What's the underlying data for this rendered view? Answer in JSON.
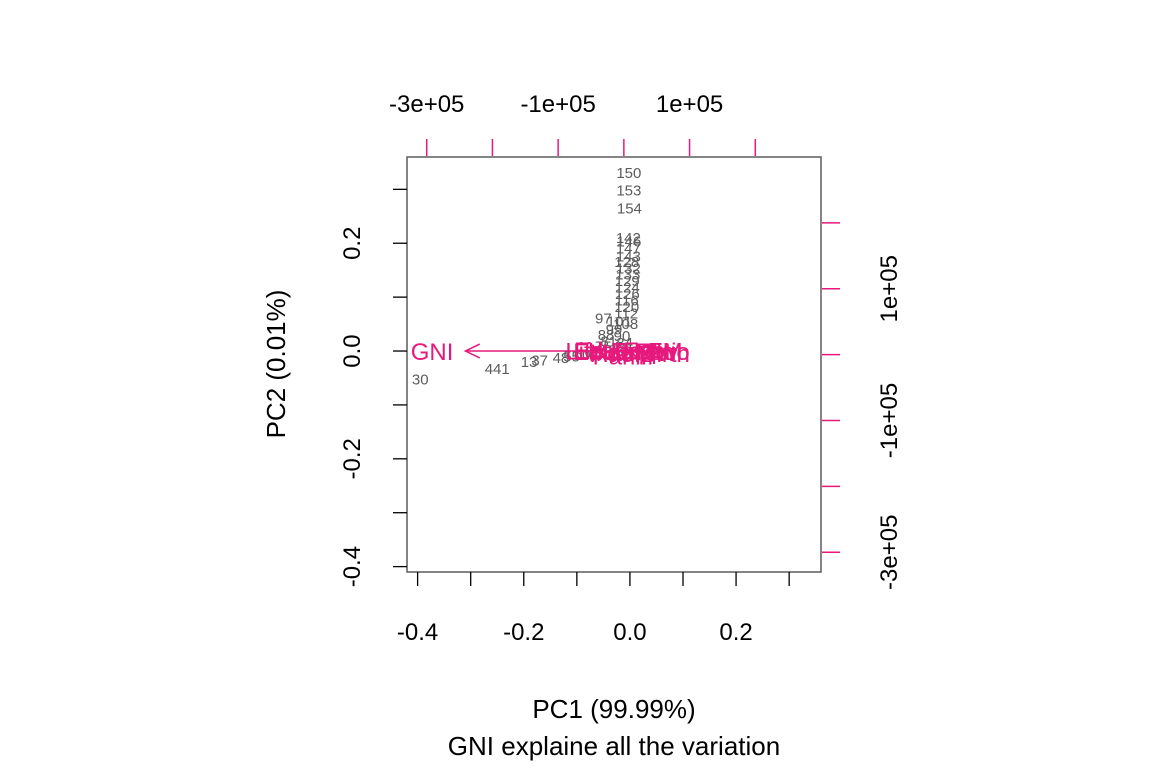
{
  "chart_data": {
    "type": "scatter",
    "subtype": "biplot",
    "xlabel": "PC1 (99.99%)",
    "ylabel": "PC2 (0.01%)",
    "subtitle": "GNI explaine all the variation",
    "xlim": [
      -0.42,
      0.36
    ],
    "ylim": [
      -0.41,
      0.36
    ],
    "x_ticks": [
      -0.4,
      -0.3,
      -0.2,
      -0.1,
      0.0,
      0.1,
      0.2,
      0.3
    ],
    "x_tick_labels": [
      {
        "value": -0.4,
        "label": "-0.4"
      },
      {
        "value": -0.2,
        "label": "-0.2"
      },
      {
        "value": 0.0,
        "label": "0.0"
      },
      {
        "value": 0.2,
        "label": "0.2"
      }
    ],
    "y_ticks": [
      -0.4,
      -0.3,
      -0.2,
      -0.1,
      0.0,
      0.1,
      0.2,
      0.3
    ],
    "y_tick_labels": [
      {
        "value": -0.4,
        "label": "-0.4"
      },
      {
        "value": -0.2,
        "label": "-0.2"
      },
      {
        "value": 0.0,
        "label": "0.0"
      },
      {
        "value": 0.2,
        "label": "0.2"
      }
    ],
    "top_axis": {
      "lim": [
        -330000,
        300000
      ],
      "ticks": [
        -300000,
        -200000,
        -100000,
        0,
        100000,
        200000
      ],
      "tick_labels": [
        {
          "value": -300000,
          "label": "-3e+05"
        },
        {
          "value": -100000,
          "label": "-1e+05"
        },
        {
          "value": 100000,
          "label": "1e+05"
        }
      ]
    },
    "right_axis": {
      "lim": [
        -330000,
        300000
      ],
      "ticks": [
        -300000,
        -200000,
        -100000,
        0,
        100000,
        200000
      ],
      "tick_labels": [
        {
          "value": -300000,
          "label": "-3e+05"
        },
        {
          "value": -100000,
          "label": "-1e+05"
        },
        {
          "value": 100000,
          "label": "1e+05"
        }
      ]
    },
    "observation_color": "#5c5c5c",
    "variable_color": "#e6197d",
    "axis_color": "#5c5c5c",
    "observations": [
      {
        "label": "150",
        "x": -0.002,
        "y": 0.33
      },
      {
        "label": "153",
        "x": -0.002,
        "y": 0.298
      },
      {
        "label": "154",
        "x": -0.001,
        "y": 0.264
      },
      {
        "label": "142",
        "x": -0.003,
        "y": 0.21
      },
      {
        "label": "146",
        "x": -0.002,
        "y": 0.203
      },
      {
        "label": "147",
        "x": -0.003,
        "y": 0.19
      },
      {
        "label": "143",
        "x": -0.003,
        "y": 0.175
      },
      {
        "label": "128",
        "x": -0.006,
        "y": 0.165
      },
      {
        "label": "132",
        "x": -0.003,
        "y": 0.153
      },
      {
        "label": "133",
        "x": -0.004,
        "y": 0.142
      },
      {
        "label": "129",
        "x": -0.005,
        "y": 0.13
      },
      {
        "label": "124",
        "x": -0.005,
        "y": 0.118
      },
      {
        "label": "126",
        "x": -0.005,
        "y": 0.106
      },
      {
        "label": "116",
        "x": -0.006,
        "y": 0.094
      },
      {
        "label": "120",
        "x": -0.006,
        "y": 0.082
      },
      {
        "label": "112",
        "x": -0.007,
        "y": 0.07
      },
      {
        "label": "97",
        "x": -0.05,
        "y": 0.06
      },
      {
        "label": "101",
        "x": -0.02,
        "y": 0.055
      },
      {
        "label": "108",
        "x": -0.008,
        "y": 0.05
      },
      {
        "label": "99",
        "x": -0.03,
        "y": 0.04
      },
      {
        "label": "88",
        "x": -0.045,
        "y": 0.03
      },
      {
        "label": "90",
        "x": -0.015,
        "y": 0.028
      },
      {
        "label": "81",
        "x": -0.04,
        "y": 0.018
      },
      {
        "label": "84",
        "x": -0.01,
        "y": 0.015
      },
      {
        "label": "75",
        "x": -0.05,
        "y": 0.008
      },
      {
        "label": "78",
        "x": -0.02,
        "y": 0.005
      },
      {
        "label": "67",
        "x": -0.07,
        "y": -0.002
      },
      {
        "label": "60",
        "x": -0.09,
        "y": -0.006
      },
      {
        "label": "55",
        "x": -0.11,
        "y": -0.01
      },
      {
        "label": "48",
        "x": -0.13,
        "y": -0.013
      },
      {
        "label": "37",
        "x": -0.17,
        "y": -0.018
      },
      {
        "label": "13",
        "x": -0.19,
        "y": -0.02
      },
      {
        "label": "441",
        "x": -0.25,
        "y": -0.033
      },
      {
        "label": "30",
        "x": -0.395,
        "y": -0.053
      }
    ],
    "variables": [
      {
        "label": "GNI",
        "x": -0.31,
        "y": 0.0,
        "label_anchor": "end"
      },
      {
        "label": "Life.Exp",
        "x": -0.04,
        "y": 0.001,
        "label_anchor": "middle"
      },
      {
        "label": "Edu.Exp",
        "x": -0.02,
        "y": 0.002,
        "label_anchor": "middle"
      },
      {
        "label": "Mat.Mor",
        "x": 0.005,
        "y": -0.002,
        "label_anchor": "middle"
      },
      {
        "label": "Ado.Birth",
        "x": 0.02,
        "y": -0.004,
        "label_anchor": "middle"
      },
      {
        "label": "Parli.F",
        "x": -0.005,
        "y": -0.008,
        "label_anchor": "middle"
      },
      {
        "label": "Edu2.FM",
        "x": -0.015,
        "y": 0.0,
        "label_anchor": "middle"
      },
      {
        "label": "Labo.FM",
        "x": 0.01,
        "y": 0.001,
        "label_anchor": "middle"
      },
      {
        "label": "Ratio",
        "x": 0.06,
        "y": 0.0,
        "label_anchor": "middle"
      }
    ]
  }
}
